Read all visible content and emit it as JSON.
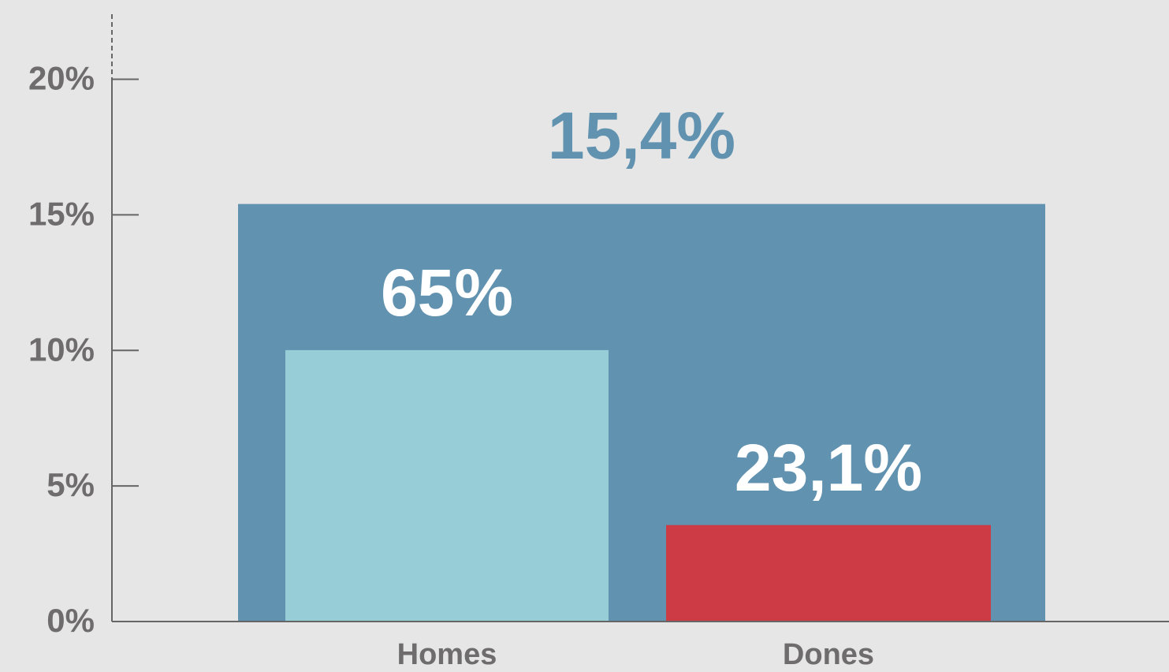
{
  "chart_data": {
    "type": "nested-bar",
    "total": {
      "value": 15.4,
      "value_label": "15,4%",
      "color": "#6192b0"
    },
    "categories": [
      "Homes",
      "Dones"
    ],
    "shares": [
      65,
      23.1
    ],
    "share_labels": [
      "65%",
      "23,1%"
    ],
    "colors": [
      "#97cdd6",
      "#cd3b44"
    ],
    "ylim": [
      0,
      22.4
    ],
    "yticks": [
      {
        "value": 0,
        "label": "0%"
      },
      {
        "value": 5,
        "label": "5%"
      },
      {
        "value": 10,
        "label": "10%"
      },
      {
        "value": 15,
        "label": "15%"
      },
      {
        "value": 20,
        "label": "20%"
      }
    ]
  }
}
